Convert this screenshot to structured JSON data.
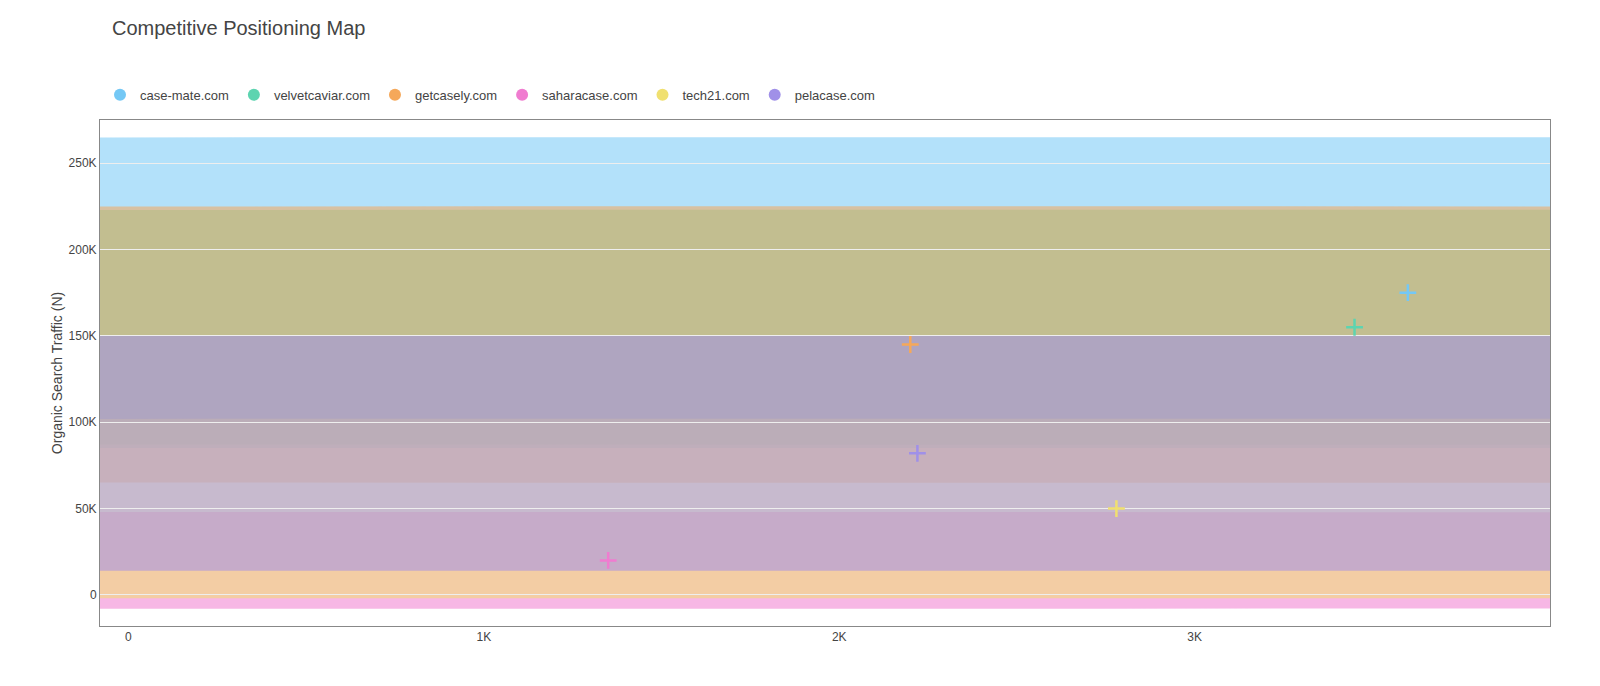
{
  "chart_data": {
    "type": "bubble",
    "title": "Competitive Positioning Map",
    "ylabel": "Organic Search Traffic (N)",
    "series": [
      {
        "name": "case-mate.com",
        "color": "#74c8f5",
        "marker": "cross",
        "x": [
          3600
        ],
        "values": [
          175000
        ],
        "radius": [
          90000
        ]
      },
      {
        "name": "velvetcaviar.com",
        "color": "#5dd4b0",
        "marker": "cross",
        "x": [
          3450
        ],
        "values": [
          155000
        ],
        "radius": [
          68000
        ]
      },
      {
        "name": "getcasely.com",
        "color": "#f5a85a",
        "marker": "cross",
        "x": [
          2200
        ],
        "values": [
          145000
        ],
        "radius": [
          80000
        ]
      },
      {
        "name": "saharacase.com",
        "color": "#f07cd0",
        "marker": "cross",
        "x": [
          1350
        ],
        "values": [
          20000
        ],
        "radius": [
          28000
        ]
      },
      {
        "name": "tech21.com",
        "color": "#f0e070",
        "marker": "cross",
        "x": [
          2780
        ],
        "values": [
          50000
        ],
        "radius": [
          52000
        ]
      },
      {
        "name": "pelacase.com",
        "color": "#a090e8",
        "marker": "cross",
        "x": [
          2220
        ],
        "values": [
          82000
        ],
        "radius": [
          68000
        ]
      }
    ],
    "xlim": [
      -80,
      4000
    ],
    "ylim": [
      -18000,
      275000
    ],
    "xticks": [
      0,
      {
        "value": 1000,
        "label": "1K"
      },
      {
        "value": 2000,
        "label": "2K"
      },
      {
        "value": 3000,
        "label": "3K"
      }
    ],
    "yticks": [
      0,
      {
        "value": 50000,
        "label": "50K"
      },
      {
        "value": 100000,
        "label": "100K"
      },
      {
        "value": 150000,
        "label": "150K"
      },
      {
        "value": 200000,
        "label": "200K"
      },
      {
        "value": 250000,
        "label": "250K"
      }
    ],
    "grid": "y",
    "legend": "top"
  }
}
